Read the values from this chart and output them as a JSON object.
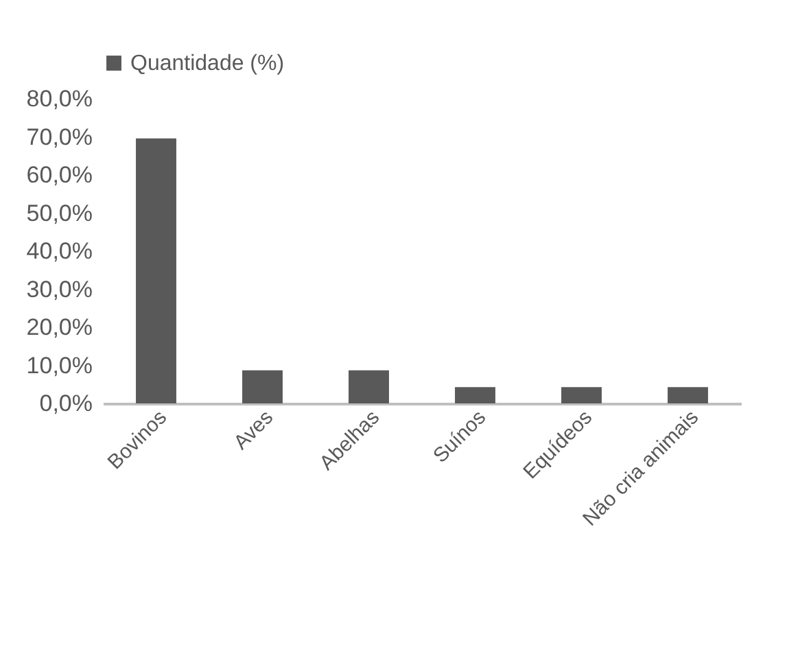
{
  "chart_data": {
    "type": "bar",
    "categories": [
      "Bovinos",
      "Aves",
      "Abelhas",
      "Suínos",
      "Equídeos",
      "Não cria animais"
    ],
    "series": [
      {
        "name": "Quantidade (%)",
        "color": "#595959",
        "values": [
          69.6,
          8.7,
          8.7,
          4.3,
          4.3,
          4.3
        ]
      }
    ],
    "ylim": [
      0,
      80
    ],
    "yticks": [
      {
        "value": 0,
        "label": "0,0%"
      },
      {
        "value": 10,
        "label": "10,0%"
      },
      {
        "value": 20,
        "label": "20,0%"
      },
      {
        "value": 30,
        "label": "30,0%"
      },
      {
        "value": 40,
        "label": "40,0%"
      },
      {
        "value": 50,
        "label": "50,0%"
      },
      {
        "value": 60,
        "label": "60,0%"
      },
      {
        "value": 70,
        "label": "70,0%"
      },
      {
        "value": 80,
        "label": "80,0%"
      }
    ],
    "grid": false,
    "legend": "top"
  }
}
